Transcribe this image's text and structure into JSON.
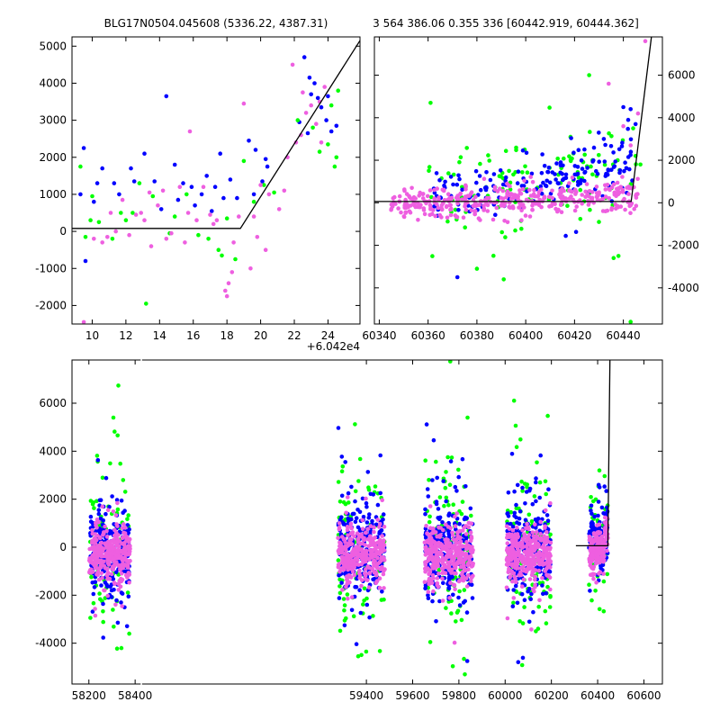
{
  "colors": {
    "blue": "#0000ff",
    "green": "#00ff00",
    "magenta": "#ee5fe0",
    "model": "#000000"
  },
  "chart_data": [
    {
      "id": "top-left",
      "type": "scatter",
      "title": "BLG17N0504.045608 (5336.22, 4387.31)",
      "xlim": [
        8.8,
        25.9
      ],
      "ylim": [
        -2500,
        5250
      ],
      "xticks": [
        10,
        12,
        14,
        16,
        18,
        20,
        22,
        24
      ],
      "yticks": [
        -2000,
        -1000,
        0,
        1000,
        2000,
        3000,
        4000,
        5000
      ],
      "offset_label": "+6.042e4",
      "model_line": [
        [
          8.8,
          80
        ],
        [
          18.8,
          80
        ],
        [
          25.9,
          5150
        ]
      ],
      "series": [
        {
          "color": "blue",
          "points": [
            [
              9.5,
              2250
            ],
            [
              10.3,
              1300
            ],
            [
              10.6,
              1700
            ],
            [
              11.3,
              1300
            ],
            [
              12.3,
              1700
            ],
            [
              13.1,
              2100
            ],
            [
              14.4,
              3650
            ],
            [
              14.9,
              1800
            ],
            [
              15.4,
              1300
            ],
            [
              15.9,
              1200
            ],
            [
              16.5,
              1000
            ],
            [
              16.8,
              1500
            ],
            [
              17.3,
              1200
            ],
            [
              17.6,
              2100
            ],
            [
              17.8,
              900
            ],
            [
              18.2,
              1400
            ],
            [
              19.3,
              2450
            ],
            [
              19.7,
              2200
            ],
            [
              20.3,
              1950
            ],
            [
              20.4,
              1750
            ],
            [
              22.3,
              2950
            ],
            [
              22.6,
              4700
            ],
            [
              22.9,
              4150
            ],
            [
              23.2,
              4000
            ],
            [
              23.4,
              3600
            ],
            [
              23.6,
              3350
            ],
            [
              23.9,
              3000
            ],
            [
              24.0,
              3650
            ],
            [
              24.2,
              2700
            ],
            [
              24.5,
              2850
            ],
            [
              9.3,
              1000
            ],
            [
              9.6,
              -800
            ],
            [
              10.1,
              800
            ],
            [
              11.6,
              1000
            ],
            [
              12.5,
              1350
            ],
            [
              13.7,
              1350
            ],
            [
              14.1,
              600
            ],
            [
              15.1,
              850
            ],
            [
              16.1,
              700
            ],
            [
              17.1,
              550
            ],
            [
              18.6,
              900
            ],
            [
              19.6,
              1000
            ],
            [
              20.1,
              1350
            ],
            [
              22.8,
              2650
            ],
            [
              23.0,
              3700
            ]
          ]
        },
        {
          "color": "green",
          "points": [
            [
              9.3,
              1750
            ],
            [
              9.6,
              -150
            ],
            [
              10.0,
              950
            ],
            [
              10.4,
              250
            ],
            [
              11.2,
              -200
            ],
            [
              11.7,
              500
            ],
            [
              12.0,
              300
            ],
            [
              12.8,
              1300
            ],
            [
              13.2,
              -1950
            ],
            [
              13.6,
              950
            ],
            [
              14.6,
              -50
            ],
            [
              15.6,
              1000
            ],
            [
              16.3,
              -100
            ],
            [
              16.9,
              -200
            ],
            [
              17.5,
              -500
            ],
            [
              18.0,
              350
            ],
            [
              18.5,
              -750
            ],
            [
              19.0,
              1900
            ],
            [
              19.6,
              800
            ],
            [
              20.8,
              1050
            ],
            [
              22.2,
              3000
            ],
            [
              23.5,
              2150
            ],
            [
              24.0,
              2350
            ],
            [
              24.2,
              3400
            ],
            [
              24.5,
              2000
            ],
            [
              24.6,
              3800
            ],
            [
              9.9,
              300
            ],
            [
              12.4,
              500
            ],
            [
              14.9,
              400
            ],
            [
              17.7,
              -650
            ],
            [
              20.2,
              1250
            ],
            [
              23.1,
              2800
            ],
            [
              24.4,
              1750
            ]
          ]
        },
        {
          "color": "magenta",
          "points": [
            [
              9.5,
              -2450
            ],
            [
              10.1,
              -200
            ],
            [
              10.9,
              -150
            ],
            [
              11.1,
              500
            ],
            [
              11.8,
              850
            ],
            [
              12.2,
              -100
            ],
            [
              12.6,
              450
            ],
            [
              13.1,
              300
            ],
            [
              13.4,
              1050
            ],
            [
              13.5,
              -400
            ],
            [
              13.9,
              700
            ],
            [
              14.2,
              1100
            ],
            [
              14.7,
              -50
            ],
            [
              15.2,
              1200
            ],
            [
              15.5,
              -300
            ],
            [
              15.8,
              2700
            ],
            [
              16.2,
              300
            ],
            [
              16.6,
              1200
            ],
            [
              17.0,
              450
            ],
            [
              17.4,
              300
            ],
            [
              17.9,
              -1600
            ],
            [
              18.0,
              -1750
            ],
            [
              18.1,
              -1400
            ],
            [
              18.4,
              -300
            ],
            [
              18.7,
              400
            ],
            [
              19.0,
              3450
            ],
            [
              19.4,
              -1000
            ],
            [
              19.8,
              -150
            ],
            [
              20.0,
              1250
            ],
            [
              20.5,
              1000
            ],
            [
              21.1,
              600
            ],
            [
              21.6,
              2000
            ],
            [
              21.9,
              4500
            ],
            [
              22.1,
              2400
            ],
            [
              22.4,
              2600
            ],
            [
              22.7,
              3200
            ],
            [
              23.0,
              3400
            ],
            [
              23.3,
              2900
            ],
            [
              23.5,
              3500
            ],
            [
              23.8,
              3900
            ],
            [
              10.6,
              -300
            ],
            [
              11.4,
              0
            ],
            [
              12.9,
              500
            ],
            [
              14.4,
              -200
            ],
            [
              15.7,
              500
            ],
            [
              17.2,
              200
            ],
            [
              18.3,
              -1100
            ],
            [
              19.6,
              400
            ],
            [
              20.3,
              -500
            ],
            [
              21.4,
              1100
            ],
            [
              22.5,
              3750
            ],
            [
              23.6,
              2400
            ]
          ]
        }
      ]
    },
    {
      "id": "top-right",
      "type": "scatter",
      "title": "3 564 386.06 0.355 336 [60442.919, 60444.362]",
      "xlim": [
        60338,
        60456
      ],
      "ylim": [
        -5700,
        7800
      ],
      "xticks": [
        60340,
        60360,
        60380,
        60400,
        60420,
        60440
      ],
      "yticks": [
        -4000,
        -2000,
        0,
        2000,
        4000,
        6000
      ],
      "model_line": [
        [
          60338,
          60
        ],
        [
          60443.2,
          60
        ],
        [
          60451.5,
          7800
        ]
      ],
      "clusters": [
        {
          "color": "blue",
          "n": 170,
          "x": [
            60362,
            60444
          ],
          "y_mu": 400,
          "y_sd": 700,
          "y_slope": 18
        },
        {
          "color": "green",
          "n": 110,
          "x": [
            60360,
            60446
          ],
          "y_mu": 500,
          "y_sd": 1100,
          "y_slope": 14
        },
        {
          "color": "magenta",
          "n": 380,
          "x": [
            60344,
            60446
          ],
          "y_mu": -80,
          "y_sd": 380,
          "y_slope": 4
        }
      ],
      "outliers": [
        {
          "color": "green",
          "points": [
            [
              60361,
              4700
            ],
            [
              60380,
              -3100
            ],
            [
              60391,
              -3600
            ],
            [
              60436,
              -2600
            ],
            [
              60438,
              -2500
            ],
            [
              60443,
              -5600
            ],
            [
              60430,
              -900
            ],
            [
              60426,
              6000
            ],
            [
              60445,
              2200
            ],
            [
              60447,
              1800
            ],
            [
              60444,
              3500
            ]
          ]
        },
        {
          "color": "blue",
          "points": [
            [
              60372,
              -3500
            ],
            [
              60440,
              4500
            ],
            [
              60442,
              3900
            ],
            [
              60443,
              4400
            ],
            [
              60432,
              3000
            ],
            [
              60445,
              3700
            ]
          ]
        },
        {
          "color": "magenta",
          "points": [
            [
              60434,
              5600
            ],
            [
              60440,
              3600
            ],
            [
              60446,
              4200
            ],
            [
              60449,
              7600
            ],
            [
              60443,
              2700
            ]
          ]
        }
      ]
    },
    {
      "id": "bottom",
      "type": "scatter",
      "xlim": [
        58127,
        60680
      ],
      "ylim": [
        -5700,
        7800
      ],
      "xticks": [
        58200,
        58400,
        59400,
        59600,
        59800,
        60000,
        60200,
        60400,
        60600
      ],
      "yticks": [
        -4000,
        -2000,
        0,
        2000,
        4000,
        6000
      ],
      "axis_break": [
        58424,
        58430
      ],
      "model_line": [
        [
          60306,
          60
        ],
        [
          60444,
          60
        ],
        [
          60453,
          7800
        ]
      ],
      "clusters": [
        {
          "color": "magenta",
          "centers": [
            58290,
            59378,
            59757,
            60102
          ],
          "half_widths": [
            88,
            102,
            105,
            96
          ],
          "y_mu": -300,
          "y_sd": 550,
          "n": 320
        },
        {
          "color": "blue",
          "centers": [
            58290,
            59378,
            59757,
            60102
          ],
          "half_widths": [
            85,
            100,
            103,
            94
          ],
          "y_mu": -150,
          "y_sd": 1000,
          "n": 230
        },
        {
          "color": "green",
          "centers": [
            58290,
            59378,
            59757,
            60102
          ],
          "half_widths": [
            85,
            100,
            103,
            94
          ],
          "y_mu": 0,
          "y_sd": 1700,
          "n": 100
        }
      ],
      "last_season": [
        {
          "color": "magenta",
          "x": [
            60364,
            60444
          ],
          "y_mu": -150,
          "y_sd": 420,
          "n": 160
        },
        {
          "color": "blue",
          "x": [
            60362,
            60444
          ],
          "y_mu": 300,
          "y_sd": 800,
          "n": 110
        },
        {
          "color": "green",
          "x": [
            60362,
            60446
          ],
          "y_mu": 300,
          "y_sd": 1300,
          "n": 60
        }
      ],
      "spike": {
        "color": "blue",
        "x": 59757,
        "y_range": [
          -2200,
          1600
        ]
      }
    }
  ]
}
